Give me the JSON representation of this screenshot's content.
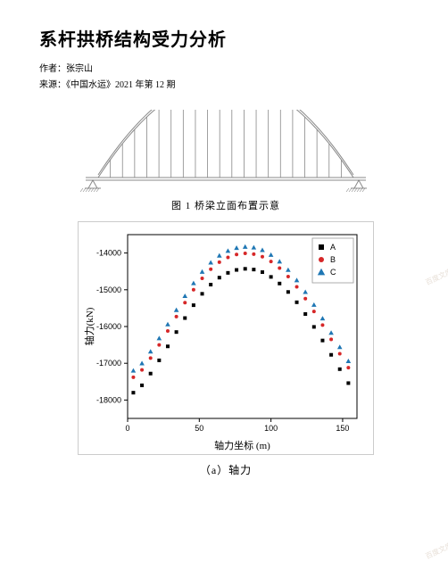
{
  "title": "系杆拱桥结构受力分析",
  "author_line": "作者：张宗山",
  "source_line": "来源：《中国水运》2021 年第 12 期",
  "fig1": {
    "caption": "图 1  桥梁立面布置示意",
    "span_m": 160,
    "rise_m": 28,
    "hanger_count": 21,
    "colors": {
      "stroke": "#888888",
      "background": "#ffffff"
    }
  },
  "chart": {
    "type": "scatter",
    "sub_caption": "（a）轴力",
    "xlabel": "轴力坐标 (m)",
    "ylabel": "轴力(kN)",
    "xlim": [
      0,
      160
    ],
    "ylim": [
      -18500,
      -13500
    ],
    "xticks": [
      0,
      50,
      100,
      150
    ],
    "yticks": [
      -18000,
      -17000,
      -16000,
      -15000,
      -14000
    ],
    "background_color": "#ffffff",
    "axis_color": "#000000",
    "grid": false,
    "marker_size": 4,
    "title_fontsize": 12,
    "label_fontsize": 11,
    "tick_fontsize": 9,
    "legend": {
      "position": "top-right",
      "items": [
        {
          "label": "A",
          "color": "#000000",
          "marker": "square"
        },
        {
          "label": "B",
          "color": "#d62728",
          "marker": "circle"
        },
        {
          "label": "C",
          "color": "#1f77b4",
          "marker": "triangle"
        }
      ]
    },
    "series": [
      {
        "name": "A",
        "color": "#000000",
        "marker": "square",
        "x": [
          4,
          10,
          16,
          22,
          28,
          34,
          40,
          46,
          52,
          58,
          64,
          70,
          76,
          82,
          88,
          94,
          100,
          106,
          112,
          118,
          124,
          130,
          136,
          142,
          148,
          154
        ],
        "y": [
          -17800,
          -17600,
          -17280,
          -16920,
          -16540,
          -16150,
          -15770,
          -15420,
          -15110,
          -14860,
          -14670,
          -14540,
          -14460,
          -14430,
          -14450,
          -14520,
          -14650,
          -14830,
          -15060,
          -15340,
          -15660,
          -16010,
          -16380,
          -16770,
          -17160,
          -17540
        ]
      },
      {
        "name": "B",
        "color": "#d62728",
        "marker": "circle",
        "x": [
          4,
          10,
          16,
          22,
          28,
          34,
          40,
          46,
          52,
          58,
          64,
          70,
          76,
          82,
          88,
          94,
          100,
          106,
          112,
          118,
          124,
          130,
          136,
          142,
          148,
          154
        ],
        "y": [
          -17380,
          -17180,
          -16860,
          -16500,
          -16120,
          -15730,
          -15350,
          -15000,
          -14690,
          -14440,
          -14250,
          -14120,
          -14040,
          -14010,
          -14030,
          -14100,
          -14230,
          -14410,
          -14640,
          -14920,
          -15240,
          -15590,
          -15960,
          -16350,
          -16740,
          -17120
        ]
      },
      {
        "name": "C",
        "color": "#1f77b4",
        "marker": "triangle",
        "x": [
          4,
          10,
          16,
          22,
          28,
          34,
          40,
          46,
          52,
          58,
          64,
          70,
          76,
          82,
          88,
          94,
          100,
          106,
          112,
          118,
          124,
          130,
          136,
          142,
          148,
          154
        ],
        "y": [
          -17200,
          -17000,
          -16680,
          -16320,
          -15940,
          -15550,
          -15170,
          -14820,
          -14510,
          -14260,
          -14070,
          -13940,
          -13860,
          -13830,
          -13850,
          -13920,
          -14050,
          -14230,
          -14460,
          -14740,
          -15060,
          -15410,
          -15780,
          -16170,
          -16560,
          -16940
        ]
      }
    ]
  },
  "watermark_text": "百度文库"
}
